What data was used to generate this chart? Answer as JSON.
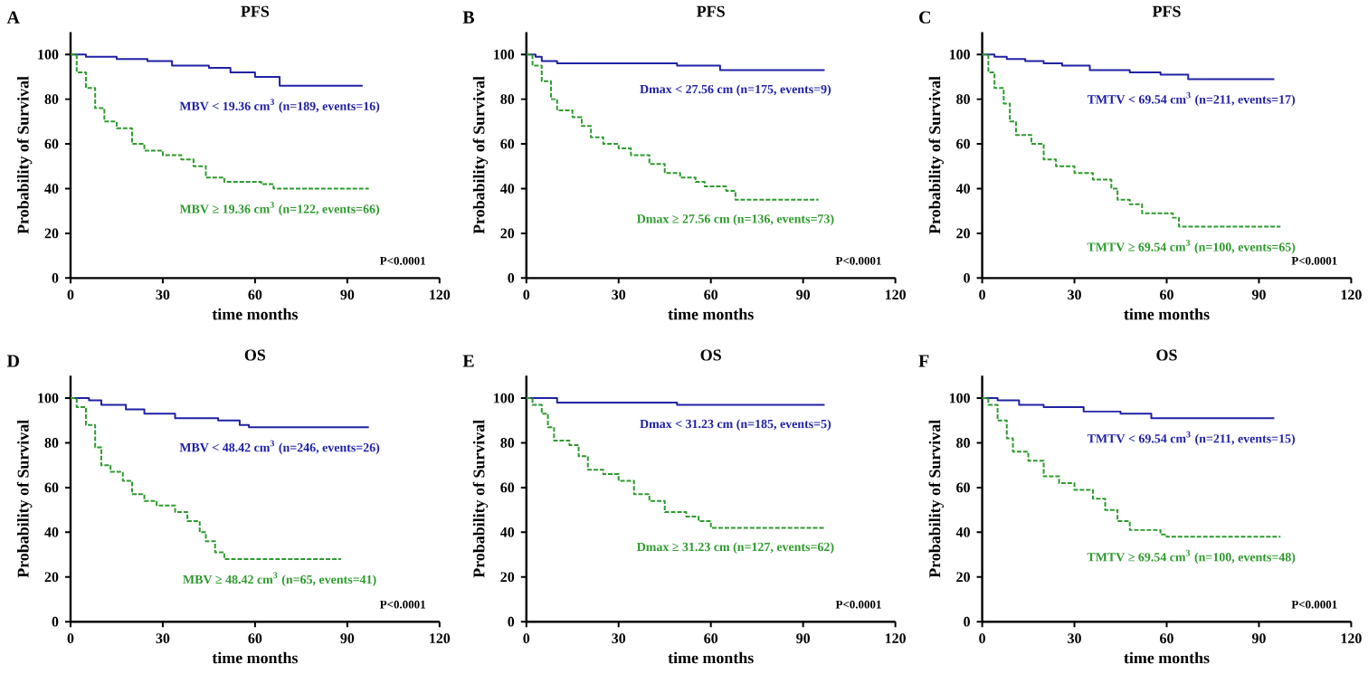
{
  "chart_data": [
    {
      "type": "step",
      "title": "PFS",
      "xlabel": "time months",
      "ylabel": "Probability of Survival",
      "annotations": [
        "A",
        "P<0.0001"
      ],
      "xlim": [
        0,
        120
      ],
      "ylim": [
        0,
        110
      ],
      "xticks": [
        0,
        30,
        60,
        90,
        120
      ],
      "yticks": [
        0,
        20,
        40,
        60,
        80,
        100
      ],
      "legend": false,
      "series": [
        {
          "name": "MBV < 19.36 cm$^{3}$ (n=189, events=16)",
          "color": "#2121a6",
          "line_style": "solid",
          "x": [
            0,
            5,
            15,
            25,
            33,
            45,
            52,
            60,
            68,
            95
          ],
          "values": [
            100,
            99,
            98,
            97,
            95,
            94,
            92,
            90,
            86,
            86
          ]
        },
        {
          "name": "MBV ≥ 19.36 cm$^{3}$ (n=122, events=66)",
          "color": "#2e9a2e",
          "line_style": "dashed",
          "x": [
            0,
            2,
            5,
            8,
            11,
            15,
            20,
            24,
            30,
            36,
            40,
            44,
            50,
            62,
            66,
            97
          ],
          "values": [
            100,
            92,
            85,
            76,
            70,
            67,
            60,
            57,
            55,
            53,
            50,
            45,
            43,
            42,
            40,
            40
          ]
        }
      ]
    },
    {
      "type": "step",
      "title": "PFS",
      "xlabel": "time months",
      "ylabel": "Probability of Survival",
      "annotations": [
        "B",
        "P<0.0001"
      ],
      "xlim": [
        0,
        120
      ],
      "ylim": [
        0,
        110
      ],
      "xticks": [
        0,
        30,
        60,
        90,
        120
      ],
      "yticks": [
        0,
        20,
        40,
        60,
        80,
        100
      ],
      "legend": false,
      "series": [
        {
          "name": "Dmax < 27.56 cm (n=175, events=9)",
          "color": "#2121a6",
          "line_style": "solid",
          "x": [
            0,
            3,
            5,
            10,
            49,
            63,
            97
          ],
          "values": [
            100,
            99,
            97,
            96,
            95,
            93,
            93
          ]
        },
        {
          "name": "Dmax ≥  27.56 cm (n=136, events=73)",
          "color": "#2e9a2e",
          "line_style": "dashed",
          "x": [
            0,
            2,
            5,
            8,
            10,
            15,
            18,
            21,
            25,
            30,
            34,
            40,
            45,
            50,
            55,
            58,
            65,
            68,
            95
          ],
          "values": [
            100,
            95,
            88,
            80,
            75,
            72,
            68,
            63,
            60,
            58,
            55,
            51,
            47,
            45,
            43,
            41,
            39,
            35,
            35
          ]
        }
      ]
    },
    {
      "type": "step",
      "title": "PFS",
      "xlabel": "time months",
      "ylabel": "Probability of Survival",
      "annotations": [
        "C",
        "P<0.0001"
      ],
      "xlim": [
        0,
        120
      ],
      "ylim": [
        0,
        110
      ],
      "xticks": [
        0,
        30,
        60,
        90,
        120
      ],
      "yticks": [
        0,
        20,
        40,
        60,
        80,
        100
      ],
      "legend": false,
      "series": [
        {
          "name": "TMTV < 69.54 cm$^{3}$  (n=211, events=17)",
          "color": "#2121a6",
          "line_style": "solid",
          "x": [
            0,
            4,
            8,
            14,
            20,
            26,
            35,
            48,
            58,
            67,
            95
          ],
          "values": [
            100,
            99,
            98,
            97,
            96,
            95,
            93,
            92,
            91,
            89,
            89
          ]
        },
        {
          "name": "TMTV ≥ 69.54 cm$^{3}$ (n=100, events=65)",
          "color": "#2e9a2e",
          "line_style": "dashed",
          "x": [
            0,
            2,
            4,
            7,
            9,
            11,
            16,
            20,
            24,
            30,
            36,
            42,
            44,
            48,
            52,
            62,
            64,
            97
          ],
          "values": [
            100,
            92,
            85,
            78,
            70,
            64,
            60,
            53,
            50,
            47,
            44,
            40,
            35,
            33,
            29,
            27,
            23,
            23
          ]
        }
      ]
    },
    {
      "type": "step",
      "title": "OS",
      "xlabel": "time months",
      "ylabel": "Probability of Survival",
      "annotations": [
        "D",
        "P<0.0001"
      ],
      "xlim": [
        0,
        120
      ],
      "ylim": [
        0,
        110
      ],
      "xticks": [
        0,
        30,
        60,
        90,
        120
      ],
      "yticks": [
        0,
        20,
        40,
        60,
        80,
        100
      ],
      "legend": false,
      "series": [
        {
          "name": "MBV < 48.42 cm$^{3}$  (n=246, events=26)",
          "color": "#2121a6",
          "line_style": "solid",
          "x": [
            0,
            6,
            10,
            18,
            24,
            34,
            48,
            55,
            58,
            97
          ],
          "values": [
            100,
            99,
            97,
            95,
            93,
            91,
            90,
            88,
            87,
            87
          ]
        },
        {
          "name": "MBV ≥ 48.42 cm$^{3}$  (n=65, events=41)",
          "color": "#2e9a2e",
          "line_style": "dashed",
          "x": [
            0,
            2,
            5,
            8,
            10,
            13,
            17,
            20,
            24,
            28,
            34,
            38,
            42,
            44,
            47,
            50,
            88
          ],
          "values": [
            100,
            96,
            88,
            78,
            70,
            67,
            63,
            57,
            54,
            52,
            49,
            45,
            40,
            36,
            31,
            28,
            28
          ]
        }
      ]
    },
    {
      "type": "step",
      "title": "OS",
      "xlabel": "time months",
      "ylabel": "Probability of Survival",
      "annotations": [
        "E",
        "P<0.0001"
      ],
      "xlim": [
        0,
        120
      ],
      "ylim": [
        0,
        110
      ],
      "xticks": [
        0,
        30,
        60,
        90,
        120
      ],
      "yticks": [
        0,
        20,
        40,
        60,
        80,
        100
      ],
      "legend": false,
      "series": [
        {
          "name": "Dmax < 31.23 cm (n=185, events=5)",
          "color": "#2121a6",
          "line_style": "solid",
          "x": [
            0,
            10,
            49,
            97
          ],
          "values": [
            100,
            98,
            97,
            97
          ]
        },
        {
          "name": "Dmax ≥ 31.23 cm (n=127, events=62)",
          "color": "#2e9a2e",
          "line_style": "dashed",
          "x": [
            0,
            2,
            5,
            7,
            9,
            14,
            17,
            20,
            25,
            30,
            35,
            40,
            45,
            52,
            56,
            60,
            97
          ],
          "values": [
            100,
            97,
            93,
            87,
            81,
            79,
            74,
            68,
            66,
            63,
            57,
            54,
            49,
            47,
            45,
            42,
            42
          ]
        }
      ]
    },
    {
      "type": "step",
      "title": "OS",
      "xlabel": "time months",
      "ylabel": "Probability of Survival",
      "annotations": [
        "F",
        "P<0.0001"
      ],
      "xlim": [
        0,
        120
      ],
      "ylim": [
        0,
        110
      ],
      "xticks": [
        0,
        30,
        60,
        90,
        120
      ],
      "yticks": [
        0,
        20,
        40,
        60,
        80,
        100
      ],
      "legend": false,
      "series": [
        {
          "name": "TMTV < 69.54 cm$^{3}$  (n=211, events=15)",
          "color": "#2121a6",
          "line_style": "solid",
          "x": [
            0,
            5,
            12,
            20,
            33,
            45,
            55,
            95
          ],
          "values": [
            100,
            99,
            97,
            96,
            94,
            93,
            91,
            91
          ]
        },
        {
          "name": "TMTV ≥ 69.54 cm$^{3}$  (n=100, events=48)",
          "color": "#2e9a2e",
          "line_style": "dashed",
          "x": [
            0,
            2,
            5,
            8,
            10,
            15,
            20,
            25,
            30,
            36,
            40,
            44,
            48,
            58,
            60,
            97
          ],
          "values": [
            100,
            97,
            90,
            82,
            76,
            72,
            65,
            62,
            59,
            55,
            50,
            45,
            41,
            39,
            38,
            38
          ]
        }
      ]
    }
  ]
}
